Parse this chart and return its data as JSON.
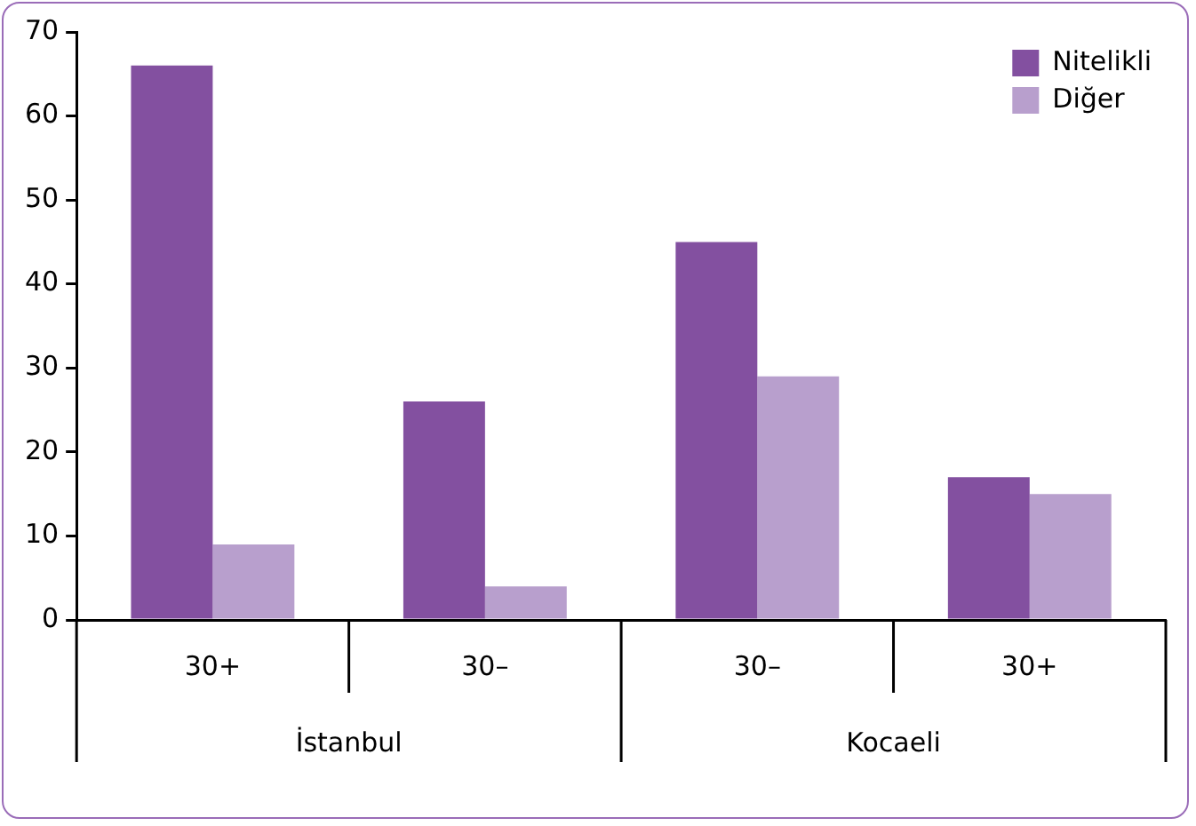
{
  "chart_data": {
    "type": "bar",
    "categories": [
      "30+",
      "30–",
      "30–",
      "30+"
    ],
    "series": [
      {
        "name": "Nitelikli",
        "color": "#8350a0",
        "values": [
          66,
          26,
          45,
          17
        ]
      },
      {
        "name": "Diğer",
        "color": "#b89fcd",
        "values": [
          9,
          4,
          29,
          15
        ]
      }
    ],
    "ylim": [
      0,
      70
    ],
    "yticks": [
      0,
      10,
      20,
      30,
      40,
      50,
      60,
      70
    ],
    "annotations": [
      "İstanbul",
      "Kocaeli"
    ],
    "legend": "top right"
  }
}
